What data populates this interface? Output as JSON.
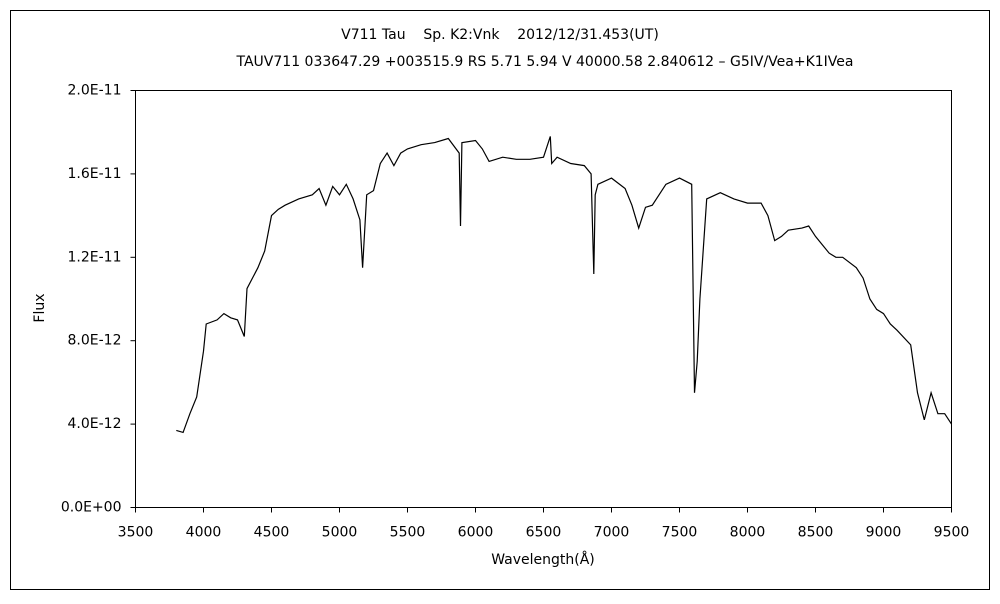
{
  "chart_data": {
    "type": "line",
    "title": "V711 Tau    Sp. K2:Vnk    2012/12/31.453(UT)",
    "subtitle": "TAUV711 033647.29 +003515.9 RS 5.71 5.94 V 40000.58 2.840612 – G5IV/Vea+K1IVea",
    "x_label": "Wavelength(Å)",
    "y_label": "Flux",
    "color": "#000000",
    "x": [
      3800,
      3850,
      3900,
      3950,
      4000,
      4020,
      4100,
      4150,
      4200,
      4250,
      4300,
      4320,
      4400,
      4450,
      4500,
      4550,
      4600,
      4700,
      4800,
      4850,
      4900,
      4950,
      5000,
      5050,
      5100,
      5150,
      5170,
      5200,
      5250,
      5300,
      5350,
      5400,
      5450,
      5500,
      5600,
      5700,
      5800,
      5880,
      5890,
      5900,
      6000,
      6050,
      6100,
      6200,
      6300,
      6400,
      6500,
      6550,
      6560,
      6600,
      6700,
      6800,
      6850,
      6870,
      6880,
      6900,
      7000,
      7100,
      7150,
      7200,
      7250,
      7300,
      7400,
      7500,
      7590,
      7610,
      7630,
      7650,
      7700,
      7800,
      7900,
      8000,
      8100,
      8150,
      8200,
      8250,
      8300,
      8400,
      8450,
      8500,
      8550,
      8600,
      8650,
      8700,
      8800,
      8850,
      8900,
      8950,
      9000,
      9050,
      9100,
      9200,
      9250,
      9300,
      9350,
      9400,
      9450,
      9500
    ],
    "values": [
      3.7e-12,
      3.6e-12,
      4.5e-12,
      5.3e-12,
      7.5e-12,
      8.8e-12,
      9e-12,
      9.3e-12,
      9.1e-12,
      9e-12,
      8.2e-12,
      1.05e-11,
      1.15e-11,
      1.23e-11,
      1.4e-11,
      1.43e-11,
      1.45e-11,
      1.48e-11,
      1.5e-11,
      1.53e-11,
      1.45e-11,
      1.54e-11,
      1.5e-11,
      1.55e-11,
      1.48e-11,
      1.38e-11,
      1.15e-11,
      1.5e-11,
      1.52e-11,
      1.65e-11,
      1.7e-11,
      1.64e-11,
      1.7e-11,
      1.72e-11,
      1.74e-11,
      1.75e-11,
      1.77e-11,
      1.7e-11,
      1.35e-11,
      1.75e-11,
      1.76e-11,
      1.72e-11,
      1.66e-11,
      1.68e-11,
      1.67e-11,
      1.67e-11,
      1.68e-11,
      1.78e-11,
      1.65e-11,
      1.68e-11,
      1.65e-11,
      1.64e-11,
      1.6e-11,
      1.12e-11,
      1.5e-11,
      1.55e-11,
      1.58e-11,
      1.53e-11,
      1.45e-11,
      1.34e-11,
      1.44e-11,
      1.45e-11,
      1.55e-11,
      1.58e-11,
      1.55e-11,
      5.5e-12,
      7e-12,
      1e-11,
      1.48e-11,
      1.51e-11,
      1.48e-11,
      1.46e-11,
      1.46e-11,
      1.4e-11,
      1.28e-11,
      1.3e-11,
      1.33e-11,
      1.34e-11,
      1.35e-11,
      1.3e-11,
      1.26e-11,
      1.22e-11,
      1.2e-11,
      1.2e-11,
      1.15e-11,
      1.1e-11,
      1e-11,
      9.5e-12,
      9.3e-12,
      8.8e-12,
      8.5e-12,
      7.8e-12,
      5.5e-12,
      4.2e-12,
      5.5e-12,
      4.5e-12,
      4.5e-12,
      4e-12
    ],
    "xlim": [
      3500,
      9500
    ],
    "xticks": [
      3500,
      4000,
      4500,
      5000,
      5500,
      6000,
      6500,
      7000,
      7500,
      8000,
      8500,
      9000,
      9500
    ],
    "ylim": [
      0,
      2e-11
    ],
    "yticks": [
      {
        "value": 0,
        "label": "0.0E+00"
      },
      {
        "value": 4e-12,
        "label": "4.0E-12"
      },
      {
        "value": 8e-12,
        "label": "8.0E-12"
      },
      {
        "value": 1.2e-11,
        "label": "1.2E-11"
      },
      {
        "value": 1.6e-11,
        "label": "1.6E-11"
      },
      {
        "value": 2e-11,
        "label": "2.0E-11"
      }
    ],
    "grid": false
  }
}
